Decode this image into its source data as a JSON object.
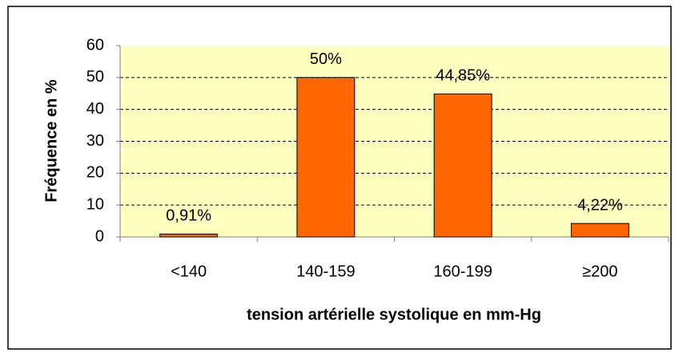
{
  "chart_data": {
    "type": "bar",
    "categories": [
      "<140",
      "140-159",
      "160-199",
      "≥200"
    ],
    "values": [
      0.91,
      50,
      44.85,
      4.22
    ],
    "value_labels": [
      "0,91%",
      "50%",
      "44,85%",
      "4,22%"
    ],
    "color": "#ff6600",
    "x_label": "tension artérielle systolique en mm-Hg",
    "y_label": "Fréquence en %",
    "ylim": [
      0,
      60
    ],
    "yticks": [
      0,
      10,
      20,
      30,
      40,
      50,
      60
    ],
    "grid": true
  }
}
